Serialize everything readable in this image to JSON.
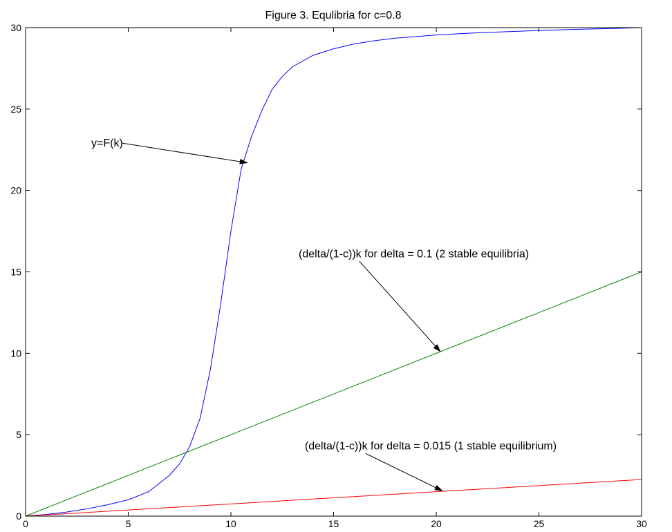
{
  "chart_data": {
    "type": "line",
    "title": "Figure 3. Equlibria for c=0.8",
    "xlabel": "",
    "ylabel": "",
    "xlim": [
      0,
      30
    ],
    "ylim": [
      0,
      30
    ],
    "xticks": [
      0,
      5,
      10,
      15,
      20,
      25,
      30
    ],
    "yticks": [
      0,
      5,
      10,
      15,
      20,
      25,
      30
    ],
    "grid": false,
    "series": [
      {
        "color": "#0000ff",
        "x": [
          0,
          1,
          2,
          3,
          4,
          5,
          6,
          7,
          7.5,
          8,
          8.5,
          9,
          9.5,
          10,
          10.5,
          11,
          11.5,
          12,
          12.5,
          13,
          14,
          15,
          16,
          17,
          18,
          19,
          20,
          21,
          22,
          23,
          24,
          25,
          26,
          27,
          28,
          29,
          30
        ],
        "y": [
          0,
          0.1,
          0.25,
          0.45,
          0.7,
          1.0,
          1.5,
          2.5,
          3.2,
          4.3,
          6.0,
          9.0,
          13.0,
          17.5,
          21.3,
          23.3,
          24.9,
          26.2,
          27.0,
          27.6,
          28.3,
          28.7,
          29.0,
          29.2,
          29.35,
          29.45,
          29.55,
          29.62,
          29.68,
          29.73,
          29.78,
          29.82,
          29.86,
          29.9,
          29.93,
          29.96,
          30.0
        ]
      },
      {
        "color": "#008000",
        "x": [
          0,
          30
        ],
        "y": [
          0,
          15
        ]
      },
      {
        "color": "#ff0000",
        "x": [
          0,
          30
        ],
        "y": [
          0,
          2.25
        ]
      }
    ],
    "annotations": [
      {
        "text": "y=F(k)",
        "text_at": [
          3.2,
          22.7
        ],
        "arrow_to": [
          10.8,
          21.7
        ]
      },
      {
        "text": "(delta/(1-c))k for delta = 0.1 (2 stable equilibria)",
        "text_at": [
          13.3,
          15.9
        ],
        "arrow_to": [
          20.2,
          10.1
        ]
      },
      {
        "text": "(delta/(1-c))k for delta = 0.015 (1 stable equilibrium)",
        "text_at": [
          13.6,
          4.1
        ],
        "arrow_to": [
          20.3,
          1.55
        ]
      }
    ]
  }
}
